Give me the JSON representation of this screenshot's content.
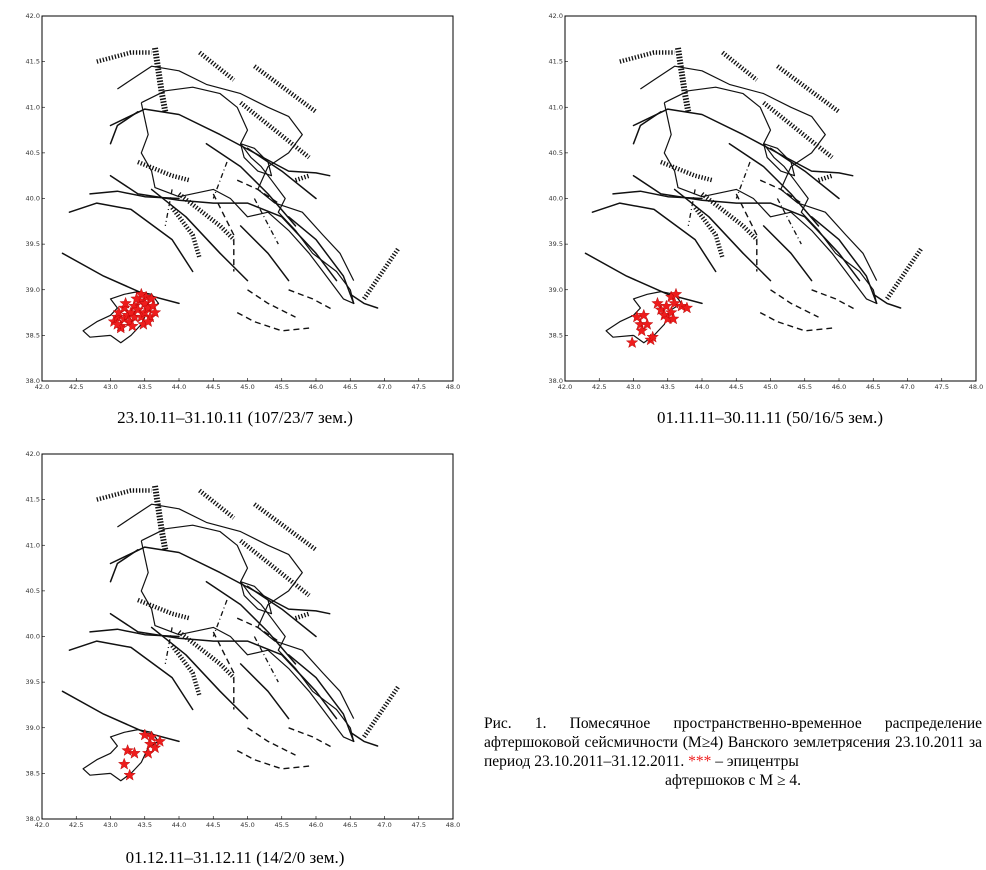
{
  "axes": {
    "x_ticks": [
      "42.0",
      "42.5",
      "43.0",
      "43.5",
      "44.0",
      "44.5",
      "45.0",
      "45.5",
      "46.0",
      "46.5",
      "47.0",
      "47.5",
      "48.0"
    ],
    "y_ticks": [
      "42.0",
      "41.5",
      "41.0",
      "40.5",
      "40.0",
      "39.5",
      "39.0",
      "38.5",
      "38.0"
    ],
    "xlim": [
      42.0,
      48.0
    ],
    "ylim": [
      38.0,
      42.0
    ]
  },
  "panels": [
    {
      "caption": "23.10.11–31.10.11  (107/23/7 зем.)",
      "epicenters": [
        [
          43.05,
          38.65
        ],
        [
          43.1,
          38.7
        ],
        [
          43.15,
          38.6
        ],
        [
          43.12,
          38.75
        ],
        [
          43.2,
          38.68
        ],
        [
          43.25,
          38.72
        ],
        [
          43.2,
          38.8
        ],
        [
          43.3,
          38.75
        ],
        [
          43.28,
          38.65
        ],
        [
          43.35,
          38.7
        ],
        [
          43.35,
          38.82
        ],
        [
          43.4,
          38.78
        ],
        [
          43.42,
          38.88
        ],
        [
          43.45,
          38.7
        ],
        [
          43.5,
          38.75
        ],
        [
          43.5,
          38.85
        ],
        [
          43.52,
          38.92
        ],
        [
          43.55,
          38.8
        ],
        [
          43.58,
          38.7
        ],
        [
          43.6,
          38.9
        ],
        [
          43.45,
          38.95
        ],
        [
          43.62,
          38.82
        ],
        [
          43.15,
          38.58
        ],
        [
          43.32,
          38.6
        ],
        [
          43.48,
          38.62
        ],
        [
          43.38,
          38.9
        ],
        [
          43.55,
          38.65
        ],
        [
          43.65,
          38.75
        ],
        [
          43.22,
          38.85
        ],
        [
          43.1,
          38.62
        ]
      ]
    },
    {
      "caption": "01.11.11–30.11.11  (50/16/5 зем.)",
      "epicenters": [
        [
          42.98,
          38.42
        ],
        [
          43.1,
          38.62
        ],
        [
          43.05,
          38.7
        ],
        [
          43.2,
          38.62
        ],
        [
          43.15,
          38.72
        ],
        [
          43.25,
          38.45
        ],
        [
          43.28,
          38.48
        ],
        [
          43.4,
          38.78
        ],
        [
          43.45,
          38.72
        ],
        [
          43.48,
          38.82
        ],
        [
          43.55,
          38.75
        ],
        [
          43.55,
          38.92
        ],
        [
          43.6,
          38.85
        ],
        [
          43.5,
          38.68
        ],
        [
          43.62,
          38.95
        ],
        [
          43.7,
          38.82
        ],
        [
          43.78,
          38.8
        ],
        [
          43.58,
          38.68
        ],
        [
          43.35,
          38.85
        ],
        [
          43.12,
          38.55
        ]
      ]
    },
    {
      "caption": "01.12.11–31.12.11  (14/2/0 зем.)",
      "epicenters": [
        [
          43.2,
          38.6
        ],
        [
          43.25,
          38.75
        ],
        [
          43.35,
          38.72
        ],
        [
          43.55,
          38.72
        ],
        [
          43.58,
          38.82
        ],
        [
          43.65,
          38.78
        ],
        [
          43.6,
          38.9
        ],
        [
          43.72,
          38.85
        ],
        [
          43.28,
          38.48
        ],
        [
          43.5,
          38.92
        ]
      ]
    }
  ],
  "legend": {
    "text_before": "Рис. 1. Помесячное пространственно-временное распределение афтершоковой сейсмичности (M≥4) Ванского землетрясения 23.10.2011 за период 23.10.2011–31.12.2011. ",
    "marker": "***",
    "text_after": " – эпицентры",
    "last_line": "афтершоков с M ≥ 4."
  }
}
